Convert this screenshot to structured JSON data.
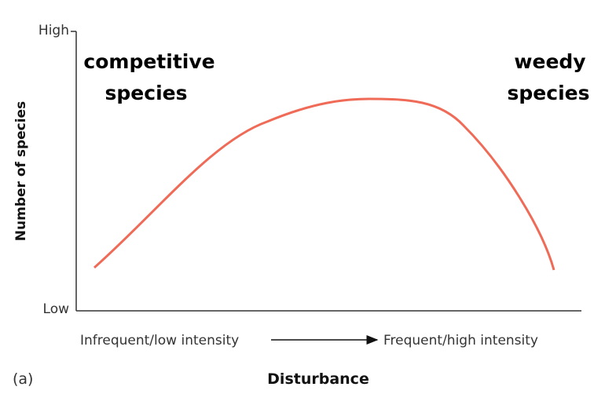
{
  "axes": {
    "y_label": "Number of species",
    "y_high": "High",
    "y_low": "Low",
    "x_label": "Disturbance",
    "x_left": "Infrequent/low intensity",
    "x_right": "Frequent/high intensity"
  },
  "annotations": [
    {
      "lines": [
        "competitive",
        "species"
      ]
    },
    {
      "lines": [
        "weedy",
        "species"
      ]
    }
  ],
  "panel_label": "(a)"
}
